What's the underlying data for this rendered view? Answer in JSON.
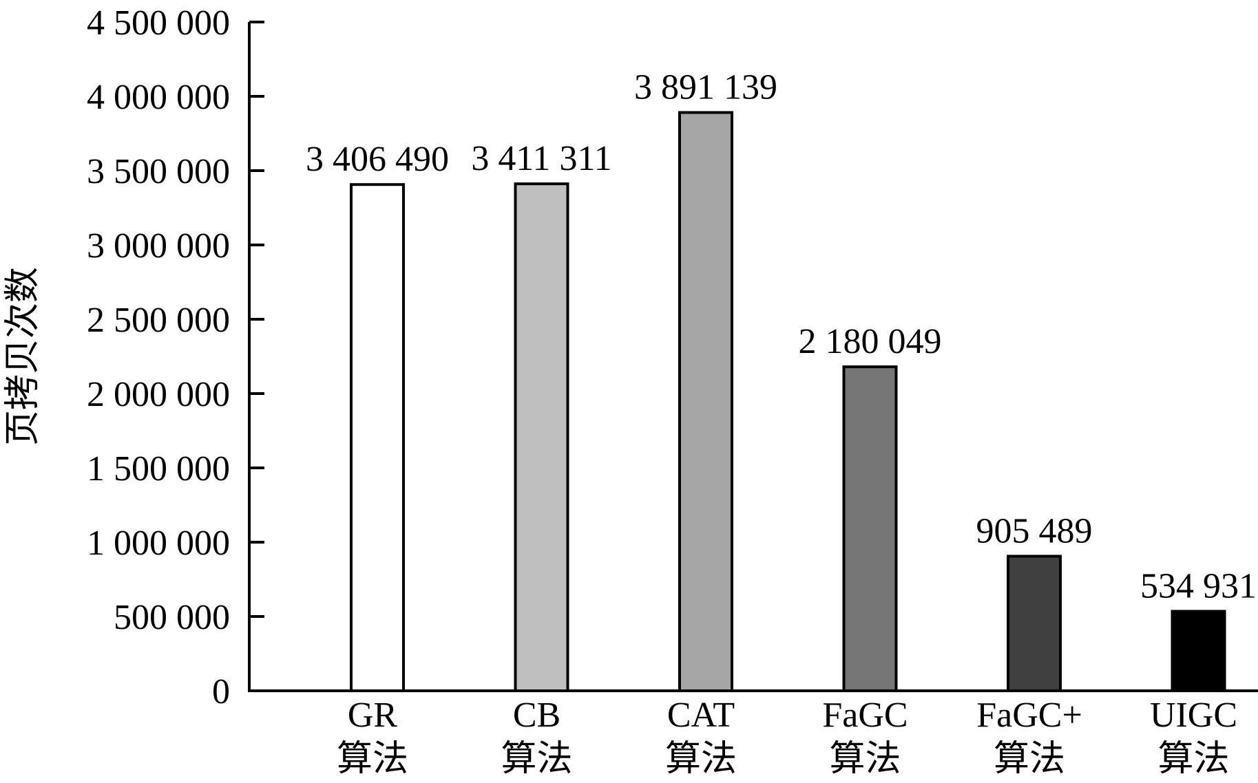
{
  "chart_data": {
    "type": "bar",
    "title": "",
    "xlabel": "",
    "ylabel": "页拷贝次数",
    "ylim": [
      0,
      4500000
    ],
    "y_ticks": [
      {
        "value": 0,
        "label": "0"
      },
      {
        "value": 500000,
        "label": "500 000"
      },
      {
        "value": 1000000,
        "label": "1 000 000"
      },
      {
        "value": 1500000,
        "label": "1 500 000"
      },
      {
        "value": 2000000,
        "label": "2 000 000"
      },
      {
        "value": 2500000,
        "label": "2 500 000"
      },
      {
        "value": 3000000,
        "label": "3 000 000"
      },
      {
        "value": 3500000,
        "label": "3 500 000"
      },
      {
        "value": 4000000,
        "label": "4 000 000"
      },
      {
        "value": 4500000,
        "label": "4 500 000"
      }
    ],
    "grid": false,
    "legend": "none",
    "bars": [
      {
        "name": "GR",
        "sub": "算法",
        "value": 3406490,
        "label": "3 406 490",
        "color": "#ffffff"
      },
      {
        "name": "CB",
        "sub": "算法",
        "value": 3411311,
        "label": "3 411 311",
        "color": "#bfbfbf"
      },
      {
        "name": "CAT",
        "sub": "算法",
        "value": 3891139,
        "label": "3 891 139",
        "color": "#a6a6a6"
      },
      {
        "name": "FaGC",
        "sub": "算法",
        "value": 2180049,
        "label": "2 180 049",
        "color": "#767676"
      },
      {
        "name": "FaGC+",
        "sub": "算法",
        "value": 905489,
        "label": "905 489",
        "color": "#404040"
      },
      {
        "name": "UIGC",
        "sub": "算法",
        "value": 534931,
        "label": "534 931",
        "color": "#000000"
      }
    ]
  }
}
